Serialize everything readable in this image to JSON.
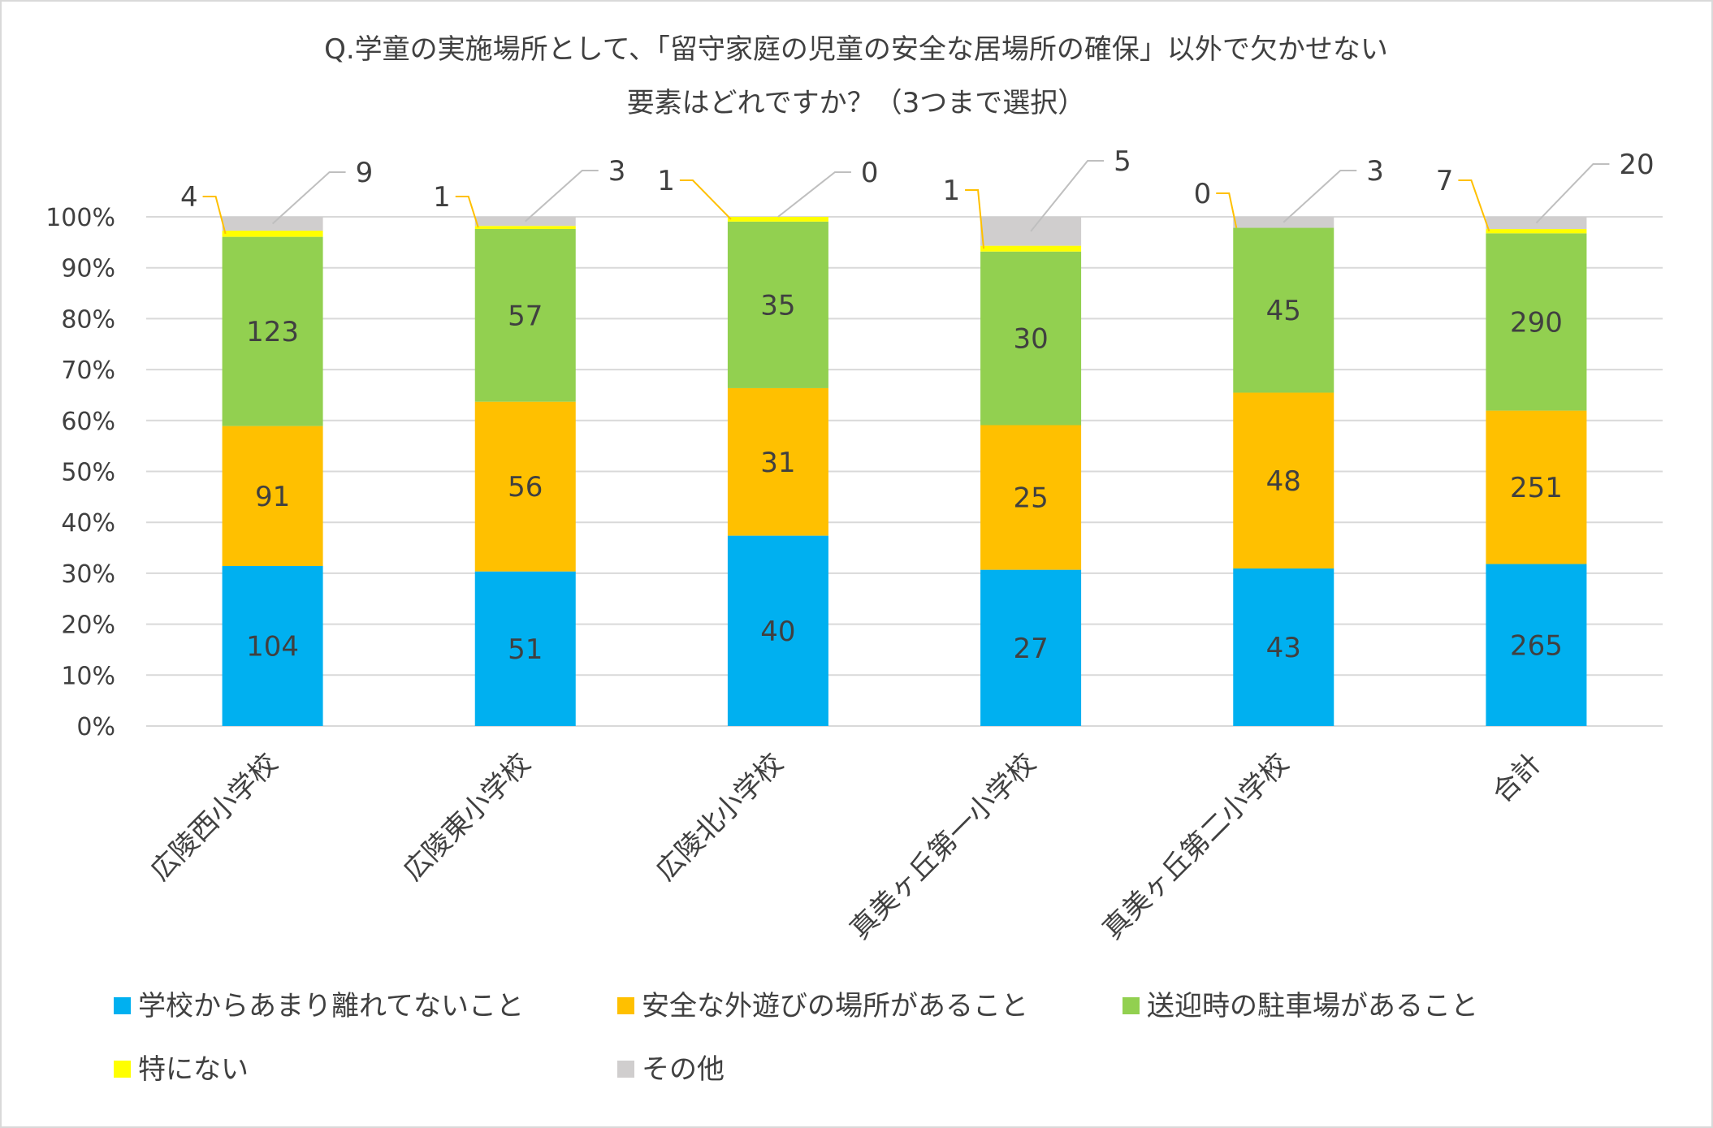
{
  "chart_data": {
    "type": "bar",
    "stacking": "percent",
    "title_lines": [
      "Q.学童の実施場所として、「留守家庭の児童の安全な居場所の確保」以外で欠かせない",
      "要素はどれですか？（3つまで選択）"
    ],
    "categories": [
      "広陵西小学校",
      "広陵東小学校",
      "広陵北小学校",
      "真美ヶ丘第一小学校",
      "真美ヶ丘第二小学校",
      "合計"
    ],
    "series": [
      {
        "name": "学校からあまり離れてないこと",
        "color": "#00B0F0",
        "values": [
          104,
          51,
          40,
          27,
          43,
          265
        ]
      },
      {
        "name": "安全な外遊びの場所があること",
        "color": "#FFC000",
        "values": [
          91,
          56,
          31,
          25,
          48,
          251
        ]
      },
      {
        "name": "送迎時の駐車場があること",
        "color": "#92D050",
        "values": [
          123,
          57,
          35,
          30,
          45,
          290
        ]
      },
      {
        "name": "特にない",
        "color": "#FFFF00",
        "values": [
          4,
          1,
          1,
          1,
          0,
          7
        ]
      },
      {
        "name": "その他",
        "color": "#D0CECE",
        "values": [
          9,
          3,
          0,
          5,
          3,
          20
        ]
      }
    ],
    "y_ticks": [
      "0%",
      "10%",
      "20%",
      "30%",
      "40%",
      "50%",
      "60%",
      "70%",
      "80%",
      "90%",
      "100%"
    ],
    "ylim": [
      0,
      100
    ],
    "grid": true,
    "legend_position": "bottom",
    "callout_series": [
      "特にない",
      "その他"
    ]
  }
}
